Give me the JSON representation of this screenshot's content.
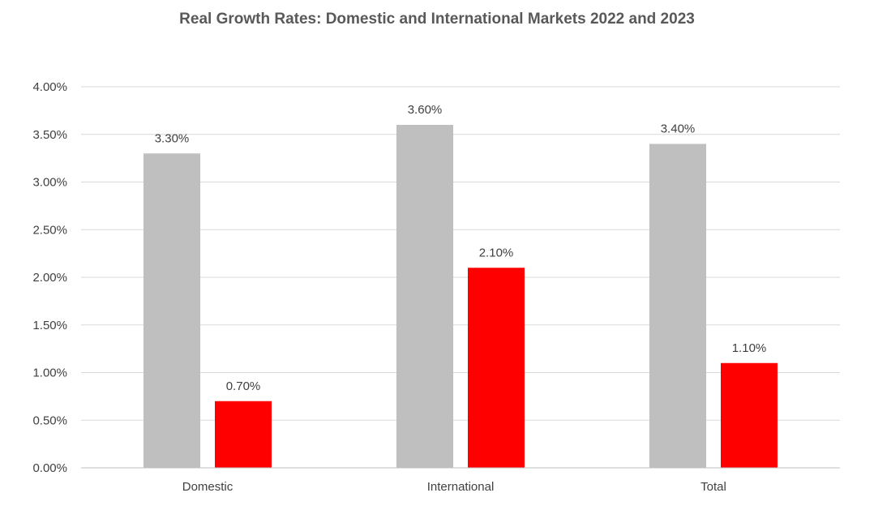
{
  "chart_data": {
    "type": "bar",
    "title": "Real Growth Rates: Domestic and International Markets 2022 and 2023",
    "xlabel": "",
    "ylabel": "",
    "categories": [
      "Domestic",
      "International",
      "Total"
    ],
    "series": [
      {
        "color": "#bfbfbf",
        "values": [
          3.3,
          3.6,
          3.4
        ],
        "labels": [
          "3.30%",
          "3.60%",
          "3.40%"
        ]
      },
      {
        "color": "#ff0000",
        "values": [
          0.7,
          2.1,
          1.1
        ],
        "labels": [
          "0.70%",
          "2.10%",
          "1.10%"
        ]
      }
    ],
    "ylim": [
      0,
      4
    ],
    "yticks": [
      0,
      0.5,
      1,
      1.5,
      2,
      2.5,
      3,
      3.5,
      4
    ],
    "ytick_labels": [
      "0.00%",
      "0.50%",
      "1.00%",
      "1.50%",
      "2.00%",
      "2.50%",
      "3.00%",
      "3.50%",
      "4.00%"
    ],
    "grid": true,
    "legend": "none"
  }
}
